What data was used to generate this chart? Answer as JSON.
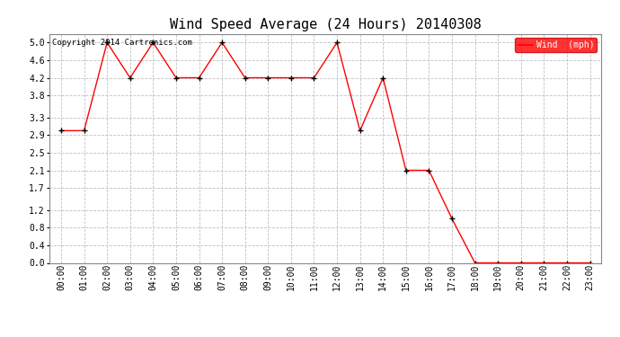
{
  "title": "Wind Speed Average (24 Hours) 20140308",
  "copyright_text": "Copyright 2014 Cartronics.com",
  "legend_label": "Wind  (mph)",
  "hours": [
    "00:00",
    "01:00",
    "02:00",
    "03:00",
    "04:00",
    "05:00",
    "06:00",
    "07:00",
    "08:00",
    "09:00",
    "10:00",
    "11:00",
    "12:00",
    "13:00",
    "14:00",
    "15:00",
    "16:00",
    "17:00",
    "18:00",
    "19:00",
    "20:00",
    "21:00",
    "22:00",
    "23:00"
  ],
  "wind_values": [
    3.0,
    3.0,
    5.0,
    4.2,
    5.0,
    4.2,
    4.2,
    5.0,
    4.2,
    4.2,
    4.2,
    4.2,
    5.0,
    3.0,
    4.2,
    2.1,
    2.1,
    1.0,
    0.0,
    0.0,
    0.0,
    0.0,
    0.0,
    0.0
  ],
  "line_color": "#ff0000",
  "marker_color": "#000000",
  "background_color": "#ffffff",
  "grid_color": "#c0c0c0",
  "ylim": [
    0.0,
    5.2
  ],
  "yticks": [
    0.0,
    0.4,
    0.8,
    1.2,
    1.7,
    2.1,
    2.5,
    2.9,
    3.3,
    3.8,
    4.2,
    4.6,
    5.0
  ],
  "title_fontsize": 11,
  "legend_bg": "#ff0000",
  "legend_text_color": "#ffffff",
  "figwidth": 6.9,
  "figheight": 3.75,
  "dpi": 100
}
